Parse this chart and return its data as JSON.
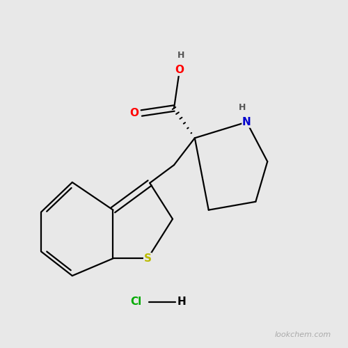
{
  "bg_color": "#e8e8e8",
  "bond_color": "#000000",
  "bond_width": 1.6,
  "atom_colors": {
    "O": "#ff0000",
    "N": "#0000cc",
    "S": "#bbbb00",
    "Cl": "#00aa00",
    "H": "#555555",
    "C": "#000000"
  },
  "font_size_atom": 11,
  "font_size_H": 9,
  "watermark": "lookchem.com",
  "watermark_color": "#aaaaaa",
  "watermark_fontsize": 8,
  "xlim": [
    0,
    10
  ],
  "ylim": [
    0,
    10
  ]
}
